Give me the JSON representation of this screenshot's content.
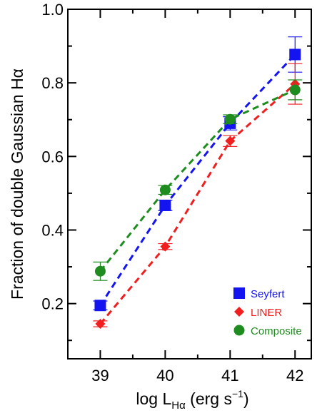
{
  "chart_data": {
    "type": "line",
    "xlabel": "log L",
    "xlabel_sub": "Hα",
    "xlabel_unit": " (erg s",
    "xlabel_sup": "−1",
    "xlabel_close": ")",
    "ylabel": "Fraction of double Gaussian Hα",
    "xlim": [
      38.5,
      42.25
    ],
    "ylim": [
      0.05,
      1.0
    ],
    "x_ticks": [
      39,
      40,
      41,
      42
    ],
    "x_tick_labels": [
      "39",
      "40",
      "41",
      "42"
    ],
    "y_ticks": [
      0.2,
      0.4,
      0.6,
      0.8,
      1.0
    ],
    "y_tick_labels": [
      "0.2",
      "0.4",
      "0.6",
      "0.8",
      "1.0"
    ],
    "y_minor_ticks": [
      0.1,
      0.3,
      0.5,
      0.7,
      0.9
    ],
    "x_minor_ticks": [
      38.5,
      39.5,
      40.5,
      41.5
    ],
    "grid": false,
    "legend_position": "bottom-right",
    "series": [
      {
        "name": "Seyfert",
        "color": "#1414f0",
        "marker": "square",
        "x": [
          39,
          40,
          41,
          42
        ],
        "y": [
          0.195,
          0.467,
          0.69,
          0.877
        ],
        "err": [
          0.012,
          0.014,
          0.018,
          0.048
        ]
      },
      {
        "name": "LINER",
        "color": "#f01e1e",
        "marker": "diamond",
        "x": [
          39,
          40,
          41,
          42
        ],
        "y": [
          0.145,
          0.355,
          0.642,
          0.797
        ],
        "err": [
          0.008,
          0.008,
          0.015,
          0.055
        ]
      },
      {
        "name": "Composite",
        "color": "#1e8c1e",
        "marker": "circle",
        "x": [
          39,
          40,
          41,
          42
        ],
        "y": [
          0.288,
          0.509,
          0.701,
          0.781
        ],
        "err": [
          0.025,
          0.012,
          0.012,
          0.027
        ]
      }
    ]
  }
}
